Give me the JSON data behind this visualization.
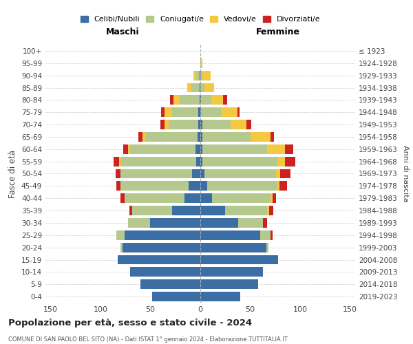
{
  "age_groups": [
    "0-4",
    "5-9",
    "10-14",
    "15-19",
    "20-24",
    "25-29",
    "30-34",
    "35-39",
    "40-44",
    "45-49",
    "50-54",
    "55-59",
    "60-64",
    "65-69",
    "70-74",
    "75-79",
    "80-84",
    "85-89",
    "90-94",
    "95-99",
    "100+"
  ],
  "birth_years": [
    "2019-2023",
    "2014-2018",
    "2009-2013",
    "2004-2008",
    "1999-2003",
    "1994-1998",
    "1989-1993",
    "1984-1988",
    "1979-1983",
    "1974-1978",
    "1969-1973",
    "1964-1968",
    "1959-1963",
    "1954-1958",
    "1949-1953",
    "1944-1948",
    "1939-1943",
    "1934-1938",
    "1929-1933",
    "1924-1928",
    "≤ 1923"
  ],
  "males": {
    "celibi": [
      48,
      60,
      70,
      83,
      78,
      76,
      50,
      28,
      16,
      12,
      8,
      4,
      5,
      3,
      2,
      2,
      1,
      1,
      1,
      0,
      0
    ],
    "coniugati": [
      0,
      0,
      0,
      0,
      2,
      8,
      22,
      40,
      60,
      68,
      72,
      75,
      65,
      52,
      30,
      26,
      20,
      8,
      3,
      0,
      0
    ],
    "vedovi": [
      0,
      0,
      0,
      0,
      0,
      0,
      0,
      0,
      0,
      0,
      0,
      2,
      2,
      3,
      4,
      8,
      6,
      4,
      3,
      0,
      0
    ],
    "divorziati": [
      0,
      0,
      0,
      0,
      0,
      0,
      0,
      3,
      4,
      4,
      5,
      6,
      5,
      4,
      4,
      3,
      3,
      0,
      0,
      0,
      0
    ]
  },
  "females": {
    "nubili": [
      40,
      58,
      63,
      78,
      66,
      60,
      38,
      25,
      12,
      7,
      4,
      2,
      2,
      2,
      2,
      1,
      1,
      0,
      0,
      0,
      0
    ],
    "coniugate": [
      0,
      0,
      0,
      0,
      2,
      10,
      25,
      42,
      58,
      70,
      72,
      75,
      65,
      48,
      28,
      20,
      10,
      4,
      2,
      0,
      0
    ],
    "vedove": [
      0,
      0,
      0,
      0,
      0,
      0,
      0,
      2,
      2,
      2,
      4,
      8,
      18,
      20,
      16,
      16,
      12,
      10,
      8,
      2,
      0
    ],
    "divorziate": [
      0,
      0,
      0,
      0,
      0,
      2,
      4,
      4,
      4,
      8,
      10,
      10,
      8,
      4,
      5,
      2,
      4,
      0,
      0,
      0,
      0
    ]
  },
  "colors": {
    "celibi": "#3a6ea5",
    "coniugati": "#b5c98e",
    "vedovi": "#f5c842",
    "divorziati": "#cc2222"
  },
  "xlim": 155,
  "xticks": [
    -150,
    -100,
    -50,
    0,
    50,
    100,
    150
  ],
  "title": "Popolazione per età, sesso e stato civile - 2024",
  "subtitle": "COMUNE DI SAN PAOLO BEL SITO (NA) - Dati ISTAT 1° gennaio 2024 - Elaborazione TUTTITALIA.IT",
  "xlabel_left": "Maschi",
  "xlabel_right": "Femmine",
  "ylabel_left": "Fasce di età",
  "ylabel_right": "Anni di nascita",
  "legend_labels": [
    "Celibi/Nubili",
    "Coniugati/e",
    "Vedovi/e",
    "Divorziati/e"
  ],
  "bg_color": "#ffffff",
  "grid_color": "#cccccc"
}
